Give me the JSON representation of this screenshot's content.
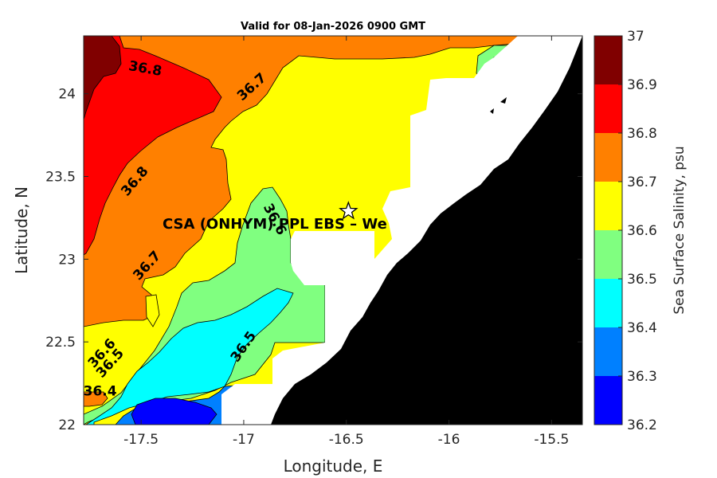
{
  "chart_data": {
    "type": "contour-map",
    "title": "Valid for 08-Jan-2026 0900 GMT",
    "xlabel": "Longitude, E",
    "ylabel": "Latitude, N",
    "xlim": [
      -17.78,
      -15.35
    ],
    "ylim": [
      22.0,
      24.35
    ],
    "xticks": [
      -17.5,
      -17,
      -16.5,
      -16,
      -15.5
    ],
    "xtick_labels": [
      "-17.5",
      "-17",
      "-16.5",
      "-16",
      "-15.5"
    ],
    "yticks": [
      22,
      22.5,
      23,
      23.5,
      24
    ],
    "ytick_labels": [
      "22",
      "22.5",
      "23",
      "23.5",
      "24"
    ],
    "colorbar": {
      "label": "Sea Surface Salinity, psu",
      "levels": [
        36.2,
        36.3,
        36.4,
        36.5,
        36.6,
        36.7,
        36.8,
        36.9,
        37.0
      ],
      "tick_labels": [
        "36.2",
        "36.3",
        "36.4",
        "36.5",
        "36.6",
        "36.7",
        "36.8",
        "36.9",
        "37"
      ],
      "colors": [
        "#0000ff",
        "#0080ff",
        "#00ffff",
        "#80ff80",
        "#ffff00",
        "#ff8000",
        "#ff0000",
        "#800000"
      ]
    },
    "contour_labels": [
      {
        "text": "36.8",
        "lon": -17.48,
        "lat": 24.15,
        "angle": 10
      },
      {
        "text": "36.7",
        "lon": -16.96,
        "lat": 24.04,
        "angle": -42
      },
      {
        "text": "36.8",
        "lon": -17.53,
        "lat": 23.47,
        "angle": -50
      },
      {
        "text": "36.6",
        "lon": -16.85,
        "lat": 23.24,
        "angle": 62
      },
      {
        "text": "36.7",
        "lon": -17.47,
        "lat": 22.96,
        "angle": -48
      },
      {
        "text": "36.6",
        "lon": -17.69,
        "lat": 22.43,
        "angle": -48
      },
      {
        "text": "36.5",
        "lon": -17.65,
        "lat": 22.37,
        "angle": -48
      },
      {
        "text": "36.5",
        "lon": -17.0,
        "lat": 22.47,
        "angle": -55
      },
      {
        "text": "36.4",
        "lon": -17.7,
        "lat": 22.2,
        "angle": 0
      }
    ],
    "station": {
      "name": "CSA (ONHYM) PPL EBS  – We",
      "lon": -16.49,
      "lat": 23.29,
      "marker": "star"
    }
  }
}
